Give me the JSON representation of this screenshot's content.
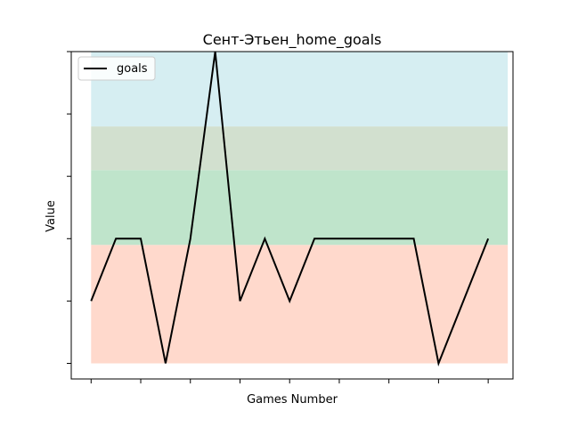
{
  "chart_data": {
    "type": "line",
    "title": "Сент-Этьен_home_goals",
    "xlabel": "Games Number",
    "ylabel": "Value",
    "x": [
      1,
      2,
      3,
      4,
      5,
      6,
      7,
      8,
      9,
      10,
      11,
      12,
      13,
      14,
      15,
      16,
      17
    ],
    "series": [
      {
        "name": "goals",
        "color": "#000000",
        "values": [
          1,
          2,
          2,
          0,
          2,
          5,
          1,
          2,
          1,
          2,
          2,
          2,
          2,
          2,
          0,
          1,
          2
        ]
      }
    ],
    "xlim": [
      0.2,
      18.0
    ],
    "ylim": [
      -0.25,
      5.0
    ],
    "x_ticks": [
      1,
      3,
      5,
      7,
      9,
      11,
      13,
      15,
      17
    ],
    "y_ticks": [
      0,
      1,
      2,
      3,
      4,
      5
    ],
    "tick_labels_shown": false,
    "grid": false,
    "legend_position": "top-left",
    "bands": [
      {
        "from": 0.0,
        "to": 1.9,
        "color": "#ffd9cc"
      },
      {
        "from": 1.9,
        "to": 3.1,
        "color": "#bfe4cb"
      },
      {
        "from": 3.1,
        "to": 3.8,
        "color": "#d2e0cf"
      },
      {
        "from": 3.8,
        "to": 5.0,
        "color": "#d6eef2"
      }
    ]
  }
}
